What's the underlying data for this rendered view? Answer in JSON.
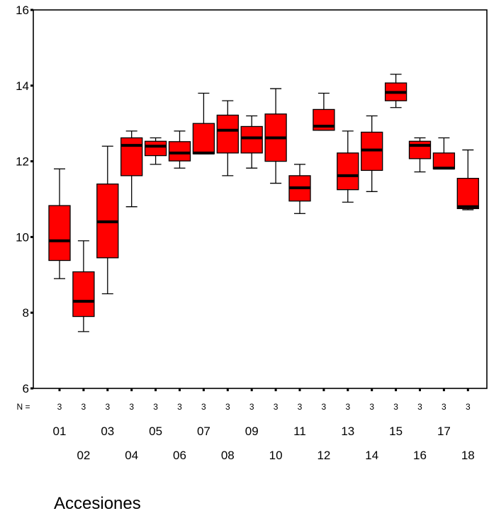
{
  "chart_data": {
    "type": "boxplot",
    "xlabel": "Accesiones",
    "ylabel": "",
    "ylim": [
      6,
      16
    ],
    "yticks": [
      "6",
      "8",
      "10",
      "12",
      "14",
      "16"
    ],
    "n_label": "N =",
    "categories": [
      "01",
      "02",
      "03",
      "04",
      "05",
      "06",
      "07",
      "08",
      "09",
      "10",
      "11",
      "12",
      "13",
      "14",
      "15",
      "16",
      "17",
      "18"
    ],
    "n": [
      "3",
      "3",
      "3",
      "3",
      "3",
      "3",
      "3",
      "3",
      "3",
      "3",
      "3",
      "3",
      "3",
      "3",
      "3",
      "3",
      "3",
      "3"
    ],
    "boxes": [
      {
        "min": 8.9,
        "q1": 9.38,
        "median": 9.9,
        "q3": 10.83,
        "max": 11.8
      },
      {
        "min": 7.5,
        "q1": 7.9,
        "median": 8.3,
        "q3": 9.08,
        "max": 9.9
      },
      {
        "min": 8.5,
        "q1": 9.45,
        "median": 10.4,
        "q3": 11.4,
        "max": 12.4
      },
      {
        "min": 10.8,
        "q1": 11.62,
        "median": 12.42,
        "q3": 12.62,
        "max": 12.8
      },
      {
        "min": 11.92,
        "q1": 12.15,
        "median": 12.4,
        "q3": 12.53,
        "max": 12.62
      },
      {
        "min": 11.82,
        "q1": 12.01,
        "median": 12.22,
        "q3": 12.52,
        "max": 12.8
      },
      {
        "min": 12.2,
        "q1": 12.2,
        "median": 12.22,
        "q3": 13.0,
        "max": 13.8
      },
      {
        "min": 11.62,
        "q1": 12.22,
        "median": 12.82,
        "q3": 13.22,
        "max": 13.6
      },
      {
        "min": 11.82,
        "q1": 12.22,
        "median": 12.62,
        "q3": 12.92,
        "max": 13.2
      },
      {
        "min": 11.42,
        "q1": 12.0,
        "median": 12.62,
        "q3": 13.25,
        "max": 13.92
      },
      {
        "min": 10.62,
        "q1": 10.95,
        "median": 11.3,
        "q3": 11.62,
        "max": 11.92
      },
      {
        "min": 12.82,
        "q1": 12.82,
        "median": 12.93,
        "q3": 13.37,
        "max": 13.8
      },
      {
        "min": 10.92,
        "q1": 11.25,
        "median": 11.62,
        "q3": 12.22,
        "max": 12.8
      },
      {
        "min": 11.2,
        "q1": 11.76,
        "median": 12.3,
        "q3": 12.77,
        "max": 13.2
      },
      {
        "min": 13.42,
        "q1": 13.6,
        "median": 13.82,
        "q3": 14.07,
        "max": 14.3
      },
      {
        "min": 11.72,
        "q1": 12.07,
        "median": 12.42,
        "q3": 12.53,
        "max": 12.62
      },
      {
        "min": 11.8,
        "q1": 11.8,
        "median": 11.82,
        "q3": 12.22,
        "max": 12.62
      },
      {
        "min": 10.72,
        "q1": 10.75,
        "median": 10.8,
        "q3": 11.55,
        "max": 12.3
      }
    ],
    "box_color": "#ff0000",
    "line_color": "#000000",
    "grid": false,
    "legend": "none"
  }
}
